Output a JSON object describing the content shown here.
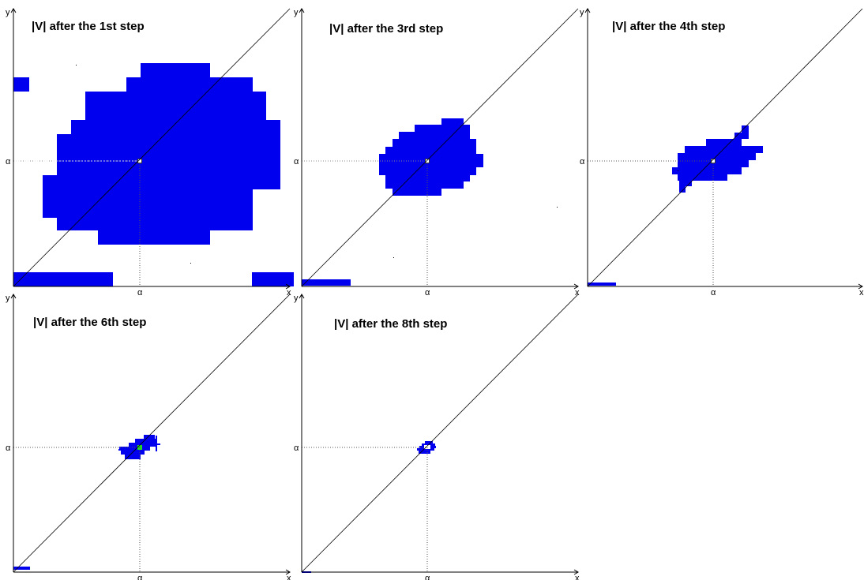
{
  "colors": {
    "region": "#0000ee",
    "fixed_point": "#22dd22",
    "axes": "#000000",
    "guide": "#555555"
  },
  "axis_labels": {
    "x": "x",
    "y": "y",
    "alpha": "α"
  },
  "panels": [
    {
      "title": "|V| after the 1st step",
      "step": 1
    },
    {
      "title": "|V| after the 3rd step",
      "step": 3
    },
    {
      "title": "|V| after the 4th step",
      "step": 4
    },
    {
      "title": "|V| after the 6th step",
      "step": 6
    },
    {
      "title": "|V| after the 8th step",
      "step": 8
    }
  ]
}
